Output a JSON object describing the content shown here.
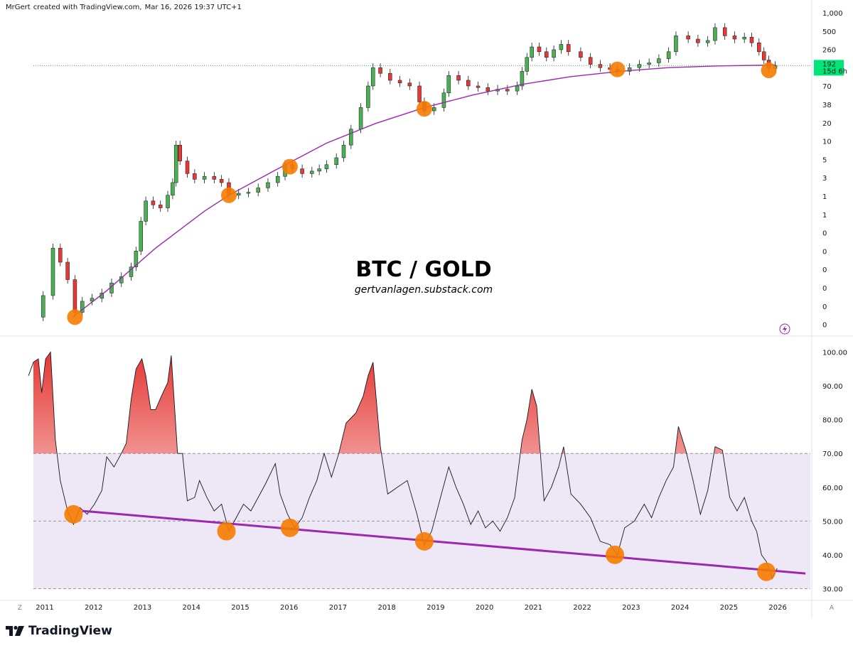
{
  "header": {
    "author": "MrGert",
    "created_with": "created with TradingView.com,",
    "date": "Mar 16, 2026 19:37 UTC+1"
  },
  "brand": {
    "name": "TradingView"
  },
  "footer": {
    "z_label": "Z",
    "a_label": "A"
  },
  "chart_data": [
    {
      "type": "candlestick",
      "title": "BTC / GOLD",
      "subtitle": "gertvanlagen.substack.com",
      "scale": "log",
      "x_range": [
        2011.0,
        2026.9
      ],
      "y_tick_labels": [
        "1,000",
        "500",
        "260",
        "140",
        "70",
        "38",
        "20",
        "10",
        "5",
        "3",
        "1",
        "1",
        "0",
        "0",
        "0",
        "0",
        "0",
        "0"
      ],
      "last_price_label": "192",
      "countdown_label": "15d 6h",
      "accent_color": "#00e676",
      "up_color": "#4caf50",
      "down_color": "#e53935",
      "trend_curve_color": "#9c27b0",
      "marker_color": "#f57c00",
      "closes": [
        {
          "t": 2011.0,
          "v": 0.06
        },
        {
          "t": 2011.2,
          "v": 0.12
        },
        {
          "t": 2011.4,
          "v": 0.55
        },
        {
          "t": 2011.55,
          "v": 0.35
        },
        {
          "t": 2011.7,
          "v": 0.2
        },
        {
          "t": 2011.85,
          "v": 0.07
        },
        {
          "t": 2012.0,
          "v": 0.1
        },
        {
          "t": 2012.2,
          "v": 0.11
        },
        {
          "t": 2012.4,
          "v": 0.13
        },
        {
          "t": 2012.6,
          "v": 0.18
        },
        {
          "t": 2012.8,
          "v": 0.22
        },
        {
          "t": 2013.0,
          "v": 0.3
        },
        {
          "t": 2013.1,
          "v": 0.5
        },
        {
          "t": 2013.2,
          "v": 1.3
        },
        {
          "t": 2013.3,
          "v": 2.5
        },
        {
          "t": 2013.45,
          "v": 2.2
        },
        {
          "t": 2013.6,
          "v": 2.0
        },
        {
          "t": 2013.75,
          "v": 3.0
        },
        {
          "t": 2013.85,
          "v": 4.5
        },
        {
          "t": 2013.92,
          "v": 15
        },
        {
          "t": 2014.0,
          "v": 9
        },
        {
          "t": 2014.15,
          "v": 6
        },
        {
          "t": 2014.3,
          "v": 5
        },
        {
          "t": 2014.5,
          "v": 5.5
        },
        {
          "t": 2014.7,
          "v": 5
        },
        {
          "t": 2014.85,
          "v": 4.5
        },
        {
          "t": 2015.0,
          "v": 3
        },
        {
          "t": 2015.2,
          "v": 3.2
        },
        {
          "t": 2015.4,
          "v": 3.3
        },
        {
          "t": 2015.6,
          "v": 3.8
        },
        {
          "t": 2015.8,
          "v": 4.5
        },
        {
          "t": 2016.0,
          "v": 5.5
        },
        {
          "t": 2016.15,
          "v": 8
        },
        {
          "t": 2016.3,
          "v": 7
        },
        {
          "t": 2016.5,
          "v": 6
        },
        {
          "t": 2016.7,
          "v": 6.5
        },
        {
          "t": 2016.85,
          "v": 7
        },
        {
          "t": 2017.0,
          "v": 8
        },
        {
          "t": 2017.2,
          "v": 10
        },
        {
          "t": 2017.35,
          "v": 15
        },
        {
          "t": 2017.5,
          "v": 25
        },
        {
          "t": 2017.7,
          "v": 50
        },
        {
          "t": 2017.85,
          "v": 100
        },
        {
          "t": 2017.95,
          "v": 180
        },
        {
          "t": 2018.1,
          "v": 150
        },
        {
          "t": 2018.3,
          "v": 120
        },
        {
          "t": 2018.5,
          "v": 110
        },
        {
          "t": 2018.7,
          "v": 100
        },
        {
          "t": 2018.9,
          "v": 60
        },
        {
          "t": 2019.0,
          "v": 45
        },
        {
          "t": 2019.2,
          "v": 50
        },
        {
          "t": 2019.4,
          "v": 80
        },
        {
          "t": 2019.5,
          "v": 140
        },
        {
          "t": 2019.7,
          "v": 120
        },
        {
          "t": 2019.9,
          "v": 100
        },
        {
          "t": 2020.1,
          "v": 95
        },
        {
          "t": 2020.3,
          "v": 85
        },
        {
          "t": 2020.5,
          "v": 90
        },
        {
          "t": 2020.7,
          "v": 85
        },
        {
          "t": 2020.9,
          "v": 100
        },
        {
          "t": 2021.0,
          "v": 160
        },
        {
          "t": 2021.1,
          "v": 250
        },
        {
          "t": 2021.2,
          "v": 350
        },
        {
          "t": 2021.35,
          "v": 300
        },
        {
          "t": 2021.5,
          "v": 250
        },
        {
          "t": 2021.65,
          "v": 320
        },
        {
          "t": 2021.8,
          "v": 380
        },
        {
          "t": 2021.95,
          "v": 300
        },
        {
          "t": 2022.2,
          "v": 250
        },
        {
          "t": 2022.4,
          "v": 200
        },
        {
          "t": 2022.6,
          "v": 180
        },
        {
          "t": 2022.8,
          "v": 170
        },
        {
          "t": 2022.95,
          "v": 160
        },
        {
          "t": 2023.2,
          "v": 180
        },
        {
          "t": 2023.4,
          "v": 200
        },
        {
          "t": 2023.6,
          "v": 210
        },
        {
          "t": 2023.8,
          "v": 240
        },
        {
          "t": 2024.0,
          "v": 300
        },
        {
          "t": 2024.15,
          "v": 500
        },
        {
          "t": 2024.4,
          "v": 450
        },
        {
          "t": 2024.6,
          "v": 400
        },
        {
          "t": 2024.8,
          "v": 430
        },
        {
          "t": 2024.95,
          "v": 650
        },
        {
          "t": 2025.15,
          "v": 500
        },
        {
          "t": 2025.35,
          "v": 450
        },
        {
          "t": 2025.55,
          "v": 480
        },
        {
          "t": 2025.7,
          "v": 400
        },
        {
          "t": 2025.85,
          "v": 300
        },
        {
          "t": 2025.95,
          "v": 230
        },
        {
          "t": 2026.05,
          "v": 175
        },
        {
          "t": 2026.18,
          "v": 192
        }
      ],
      "trend_curve": [
        {
          "t": 2011.8,
          "v": 0.06
        },
        {
          "t": 2012.5,
          "v": 0.14
        },
        {
          "t": 2013.5,
          "v": 0.55
        },
        {
          "t": 2014.5,
          "v": 1.8
        },
        {
          "t": 2015.0,
          "v": 3.0
        },
        {
          "t": 2016.0,
          "v": 7
        },
        {
          "t": 2017.0,
          "v": 16
        },
        {
          "t": 2018.0,
          "v": 30
        },
        {
          "t": 2019.0,
          "v": 50
        },
        {
          "t": 2020.0,
          "v": 75
        },
        {
          "t": 2021.0,
          "v": 105
        },
        {
          "t": 2022.0,
          "v": 135
        },
        {
          "t": 2023.0,
          "v": 160
        },
        {
          "t": 2024.0,
          "v": 180
        },
        {
          "t": 2025.0,
          "v": 190
        },
        {
          "t": 2026.2,
          "v": 196
        }
      ],
      "markers": [
        {
          "t": 2011.85,
          "v": 0.06
        },
        {
          "t": 2015.0,
          "v": 3.0
        },
        {
          "t": 2016.25,
          "v": 7.5
        },
        {
          "t": 2019.0,
          "v": 48
        },
        {
          "t": 2022.95,
          "v": 170
        },
        {
          "t": 2026.05,
          "v": 165
        }
      ]
    },
    {
      "type": "line",
      "indicator": "RSI",
      "y_range": [
        28,
        102
      ],
      "y_ticks": [
        "100.00",
        "90.00",
        "80.00",
        "70.00",
        "60.00",
        "50.00",
        "40.00",
        "30.00"
      ],
      "y_tick_values": [
        100,
        90,
        80,
        70,
        60,
        50,
        40,
        30
      ],
      "overbought": 70,
      "midline": 50,
      "oversold": 30,
      "band_color": "#ede7f6",
      "line_color": "#131722",
      "hot_color": "#e53935",
      "trendline_color": "#9c27b0",
      "marker_color": "#f57c00",
      "x_tick_labels": [
        "2011",
        "2012",
        "2013",
        "2014",
        "2015",
        "2016",
        "2017",
        "2018",
        "2019",
        "2020",
        "2021",
        "2022",
        "2023",
        "2024",
        "2025",
        "2026"
      ],
      "x_tick_values": [
        2011,
        2012,
        2013,
        2014,
        2015,
        2016,
        2017,
        2018,
        2019,
        2020,
        2021,
        2022,
        2023,
        2024,
        2025,
        2026
      ],
      "series": [
        {
          "t": 2010.9,
          "v": 93
        },
        {
          "t": 2011.0,
          "v": 97
        },
        {
          "t": 2011.1,
          "v": 98
        },
        {
          "t": 2011.17,
          "v": 88
        },
        {
          "t": 2011.25,
          "v": 98
        },
        {
          "t": 2011.35,
          "v": 100
        },
        {
          "t": 2011.45,
          "v": 74
        },
        {
          "t": 2011.55,
          "v": 62
        },
        {
          "t": 2011.7,
          "v": 53
        },
        {
          "t": 2011.82,
          "v": 49
        },
        {
          "t": 2011.95,
          "v": 54
        },
        {
          "t": 2012.1,
          "v": 52
        },
        {
          "t": 2012.25,
          "v": 55
        },
        {
          "t": 2012.4,
          "v": 59
        },
        {
          "t": 2012.5,
          "v": 69
        },
        {
          "t": 2012.65,
          "v": 66
        },
        {
          "t": 2012.8,
          "v": 70
        },
        {
          "t": 2012.9,
          "v": 73
        },
        {
          "t": 2013.0,
          "v": 86
        },
        {
          "t": 2013.1,
          "v": 95
        },
        {
          "t": 2013.22,
          "v": 98
        },
        {
          "t": 2013.3,
          "v": 93
        },
        {
          "t": 2013.4,
          "v": 83
        },
        {
          "t": 2013.5,
          "v": 83
        },
        {
          "t": 2013.62,
          "v": 87
        },
        {
          "t": 2013.75,
          "v": 91
        },
        {
          "t": 2013.82,
          "v": 99
        },
        {
          "t": 2013.95,
          "v": 70
        },
        {
          "t": 2014.05,
          "v": 70
        },
        {
          "t": 2014.15,
          "v": 56
        },
        {
          "t": 2014.3,
          "v": 57
        },
        {
          "t": 2014.4,
          "v": 62
        },
        {
          "t": 2014.55,
          "v": 57
        },
        {
          "t": 2014.7,
          "v": 53
        },
        {
          "t": 2014.85,
          "v": 55
        },
        {
          "t": 2015.0,
          "v": 47
        },
        {
          "t": 2015.15,
          "v": 51
        },
        {
          "t": 2015.3,
          "v": 55
        },
        {
          "t": 2015.45,
          "v": 53
        },
        {
          "t": 2015.6,
          "v": 57
        },
        {
          "t": 2015.75,
          "v": 61
        },
        {
          "t": 2015.95,
          "v": 67
        },
        {
          "t": 2016.05,
          "v": 58
        },
        {
          "t": 2016.2,
          "v": 52
        },
        {
          "t": 2016.35,
          "v": 48
        },
        {
          "t": 2016.5,
          "v": 51
        },
        {
          "t": 2016.65,
          "v": 57
        },
        {
          "t": 2016.8,
          "v": 62
        },
        {
          "t": 2016.95,
          "v": 70
        },
        {
          "t": 2017.1,
          "v": 63
        },
        {
          "t": 2017.25,
          "v": 70
        },
        {
          "t": 2017.4,
          "v": 79
        },
        {
          "t": 2017.6,
          "v": 82
        },
        {
          "t": 2017.75,
          "v": 87
        },
        {
          "t": 2017.85,
          "v": 93
        },
        {
          "t": 2017.95,
          "v": 97
        },
        {
          "t": 2018.1,
          "v": 72
        },
        {
          "t": 2018.25,
          "v": 58
        },
        {
          "t": 2018.45,
          "v": 60
        },
        {
          "t": 2018.65,
          "v": 62
        },
        {
          "t": 2018.85,
          "v": 52
        },
        {
          "t": 2019.0,
          "v": 43
        },
        {
          "t": 2019.15,
          "v": 47
        },
        {
          "t": 2019.35,
          "v": 58
        },
        {
          "t": 2019.5,
          "v": 66
        },
        {
          "t": 2019.65,
          "v": 60
        },
        {
          "t": 2019.8,
          "v": 55
        },
        {
          "t": 2019.95,
          "v": 49
        },
        {
          "t": 2020.1,
          "v": 53
        },
        {
          "t": 2020.25,
          "v": 48
        },
        {
          "t": 2020.4,
          "v": 50
        },
        {
          "t": 2020.55,
          "v": 47
        },
        {
          "t": 2020.7,
          "v": 51
        },
        {
          "t": 2020.85,
          "v": 57
        },
        {
          "t": 2021.0,
          "v": 74
        },
        {
          "t": 2021.1,
          "v": 80
        },
        {
          "t": 2021.2,
          "v": 89
        },
        {
          "t": 2021.3,
          "v": 84
        },
        {
          "t": 2021.45,
          "v": 56
        },
        {
          "t": 2021.6,
          "v": 60
        },
        {
          "t": 2021.75,
          "v": 66
        },
        {
          "t": 2021.85,
          "v": 72
        },
        {
          "t": 2022.0,
          "v": 58
        },
        {
          "t": 2022.2,
          "v": 55
        },
        {
          "t": 2022.4,
          "v": 51
        },
        {
          "t": 2022.6,
          "v": 44
        },
        {
          "t": 2022.8,
          "v": 43
        },
        {
          "t": 2022.95,
          "v": 40
        },
        {
          "t": 2023.1,
          "v": 48
        },
        {
          "t": 2023.3,
          "v": 50
        },
        {
          "t": 2023.5,
          "v": 55
        },
        {
          "t": 2023.65,
          "v": 51
        },
        {
          "t": 2023.8,
          "v": 57
        },
        {
          "t": 2023.95,
          "v": 62
        },
        {
          "t": 2024.1,
          "v": 66
        },
        {
          "t": 2024.2,
          "v": 78
        },
        {
          "t": 2024.35,
          "v": 71
        },
        {
          "t": 2024.5,
          "v": 62
        },
        {
          "t": 2024.65,
          "v": 52
        },
        {
          "t": 2024.8,
          "v": 59
        },
        {
          "t": 2024.95,
          "v": 72
        },
        {
          "t": 2025.1,
          "v": 71
        },
        {
          "t": 2025.25,
          "v": 57
        },
        {
          "t": 2025.4,
          "v": 53
        },
        {
          "t": 2025.55,
          "v": 57
        },
        {
          "t": 2025.7,
          "v": 50
        },
        {
          "t": 2025.8,
          "v": 47
        },
        {
          "t": 2025.9,
          "v": 40
        },
        {
          "t": 2026.0,
          "v": 38
        },
        {
          "t": 2026.12,
          "v": 33
        },
        {
          "t": 2026.22,
          "v": 36
        }
      ],
      "trendline": [
        {
          "t": 2012.0,
          "v": 53
        },
        {
          "t": 2026.8,
          "v": 34.5
        }
      ],
      "markers": [
        {
          "t": 2011.82,
          "v": 52
        },
        {
          "t": 2014.95,
          "v": 47
        },
        {
          "t": 2016.25,
          "v": 48
        },
        {
          "t": 2019.0,
          "v": 44
        },
        {
          "t": 2022.9,
          "v": 40
        },
        {
          "t": 2026.0,
          "v": 35
        }
      ]
    }
  ]
}
